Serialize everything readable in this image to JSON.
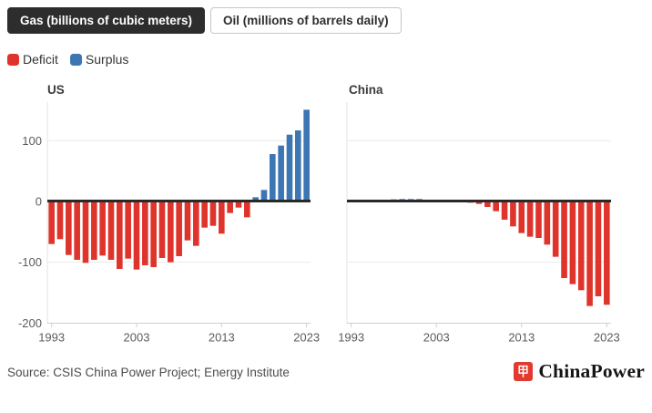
{
  "tabs": [
    {
      "label": "Gas (billions of cubic meters)",
      "active": true
    },
    {
      "label": "Oil (millions of barrels daily)",
      "active": false
    }
  ],
  "legend": [
    {
      "label": "Deficit",
      "color": "#df342c"
    },
    {
      "label": "Surplus",
      "color": "#3c76b3"
    }
  ],
  "source": "Source: CSIS China Power Project; Energy Institute",
  "brand": {
    "name": "ChinaPower",
    "logo_color": "#e23a2e"
  },
  "colors": {
    "deficit": "#df342c",
    "surplus": "#3c76b3",
    "zero_line": "#292929",
    "gridline": "#ececec",
    "axis": "#cfcfcf",
    "tick_label": "#5d5d5d"
  },
  "chart_data": [
    {
      "type": "bar",
      "title": "US",
      "unit": "billions of cubic meters",
      "semantics": "negative values = Deficit (red), positive values = Surplus (blue)",
      "categories": [
        1993,
        1994,
        1995,
        1996,
        1997,
        1998,
        1999,
        2000,
        2001,
        2002,
        2003,
        2004,
        2005,
        2006,
        2007,
        2008,
        2009,
        2010,
        2011,
        2012,
        2013,
        2014,
        2015,
        2016,
        2017,
        2018,
        2019,
        2020,
        2021,
        2022,
        2023
      ],
      "values": [
        -70,
        -62,
        -88,
        -96,
        -101,
        -96,
        -89,
        -96,
        -111,
        -94,
        -112,
        -105,
        -108,
        -93,
        -100,
        -90,
        -64,
        -73,
        -43,
        -40,
        -53,
        -19,
        -10,
        -26,
        7,
        19,
        78,
        92,
        110,
        117,
        151
      ],
      "ylim": [
        -200,
        165
      ],
      "yticks": [
        100,
        0,
        -100,
        -200
      ],
      "xticks": [
        1993,
        2003,
        2013,
        2023
      ],
      "grid": true,
      "y_axis_labels_shown": true
    },
    {
      "type": "bar",
      "title": "China",
      "unit": "billions of cubic meters",
      "semantics": "negative values = Deficit (red), positive values = Surplus (blue)",
      "categories": [
        1993,
        1994,
        1995,
        1996,
        1997,
        1998,
        1999,
        2000,
        2001,
        2002,
        2003,
        2004,
        2005,
        2006,
        2007,
        2008,
        2009,
        2010,
        2011,
        2012,
        2013,
        2014,
        2015,
        2016,
        2017,
        2018,
        2019,
        2020,
        2021,
        2022,
        2023
      ],
      "values": [
        0.5,
        1,
        1.5,
        2,
        3,
        3.5,
        4,
        4,
        4,
        3,
        2.5,
        2.5,
        2,
        1,
        -2,
        -4,
        -9,
        -16,
        -30,
        -41,
        -52,
        -58,
        -60,
        -71,
        -91,
        -126,
        -136,
        -146,
        -172,
        -156,
        -170
      ],
      "ylim": [
        -200,
        165
      ],
      "yticks": [
        100,
        0,
        -100,
        -200
      ],
      "xticks": [
        1993,
        2003,
        2013,
        2023
      ],
      "grid": true,
      "y_axis_labels_shown": false
    }
  ]
}
